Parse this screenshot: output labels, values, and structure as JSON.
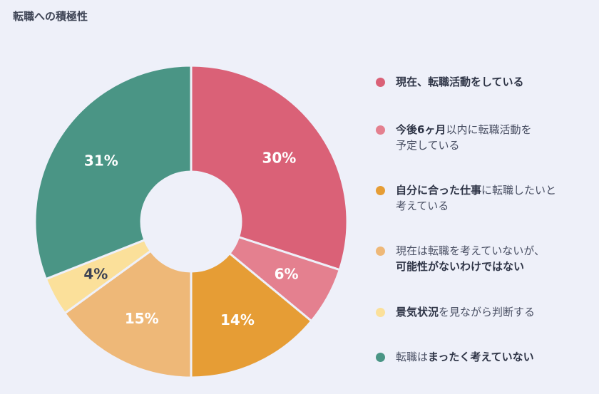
{
  "title": "転職への積極性",
  "chart_data": {
    "type": "pie",
    "title": "転職への積極性",
    "donut": true,
    "slices": [
      {
        "label": "現在、転職活動をしている",
        "value": 30,
        "display": "30%",
        "color": "#da6177",
        "label_color": "#ffffff"
      },
      {
        "label": "今後6ヶ月以内に転職活動を予定している",
        "value": 6,
        "display": "6%",
        "color": "#e4808f",
        "label_color": "#ffffff"
      },
      {
        "label": "自分に合った仕事に転職したいと考えている",
        "value": 14,
        "display": "14%",
        "color": "#e69d35",
        "label_color": "#ffffff"
      },
      {
        "label": "現在は転職を考えていないが、可能性がないわけではない",
        "value": 15,
        "display": "15%",
        "color": "#eeb878",
        "label_color": "#ffffff"
      },
      {
        "label": "景気状況を見ながら判断する",
        "value": 4,
        "display": "4%",
        "color": "#fbe09a",
        "label_color": "#3d4354"
      },
      {
        "label": "転職はまったく考えていない",
        "value": 31,
        "display": "31%",
        "color": "#4a9585",
        "label_color": "#ffffff"
      }
    ],
    "legend_position": "right"
  },
  "legend": [
    {
      "color": "#da6177",
      "lines": [
        [
          {
            "t": "現在、転職活動をしている",
            "b": true
          }
        ]
      ]
    },
    {
      "color": "#e4808f",
      "lines": [
        [
          {
            "t": "今後6ヶ月",
            "b": true
          },
          {
            "t": "以内に転職活動を",
            "b": false
          }
        ],
        [
          {
            "t": "予定している",
            "b": false
          }
        ]
      ]
    },
    {
      "color": "#e69d35",
      "lines": [
        [
          {
            "t": "自分に合った仕事",
            "b": true
          },
          {
            "t": "に転職したいと",
            "b": false
          }
        ],
        [
          {
            "t": "考えている",
            "b": false
          }
        ]
      ]
    },
    {
      "color": "#eeb878",
      "lines": [
        [
          {
            "t": "現在は転職を考えていないが、",
            "b": false
          }
        ],
        [
          {
            "t": "可能性がないわけではない",
            "b": true
          }
        ]
      ]
    },
    {
      "color": "#fbe09a",
      "lines": [
        [
          {
            "t": "景気状況",
            "b": true
          },
          {
            "t": "を見ながら判断する",
            "b": false
          }
        ]
      ]
    },
    {
      "color": "#4a9585",
      "lines": [
        [
          {
            "t": "転職は",
            "b": false
          },
          {
            "t": "まったく考えていない",
            "b": true
          }
        ]
      ]
    }
  ]
}
